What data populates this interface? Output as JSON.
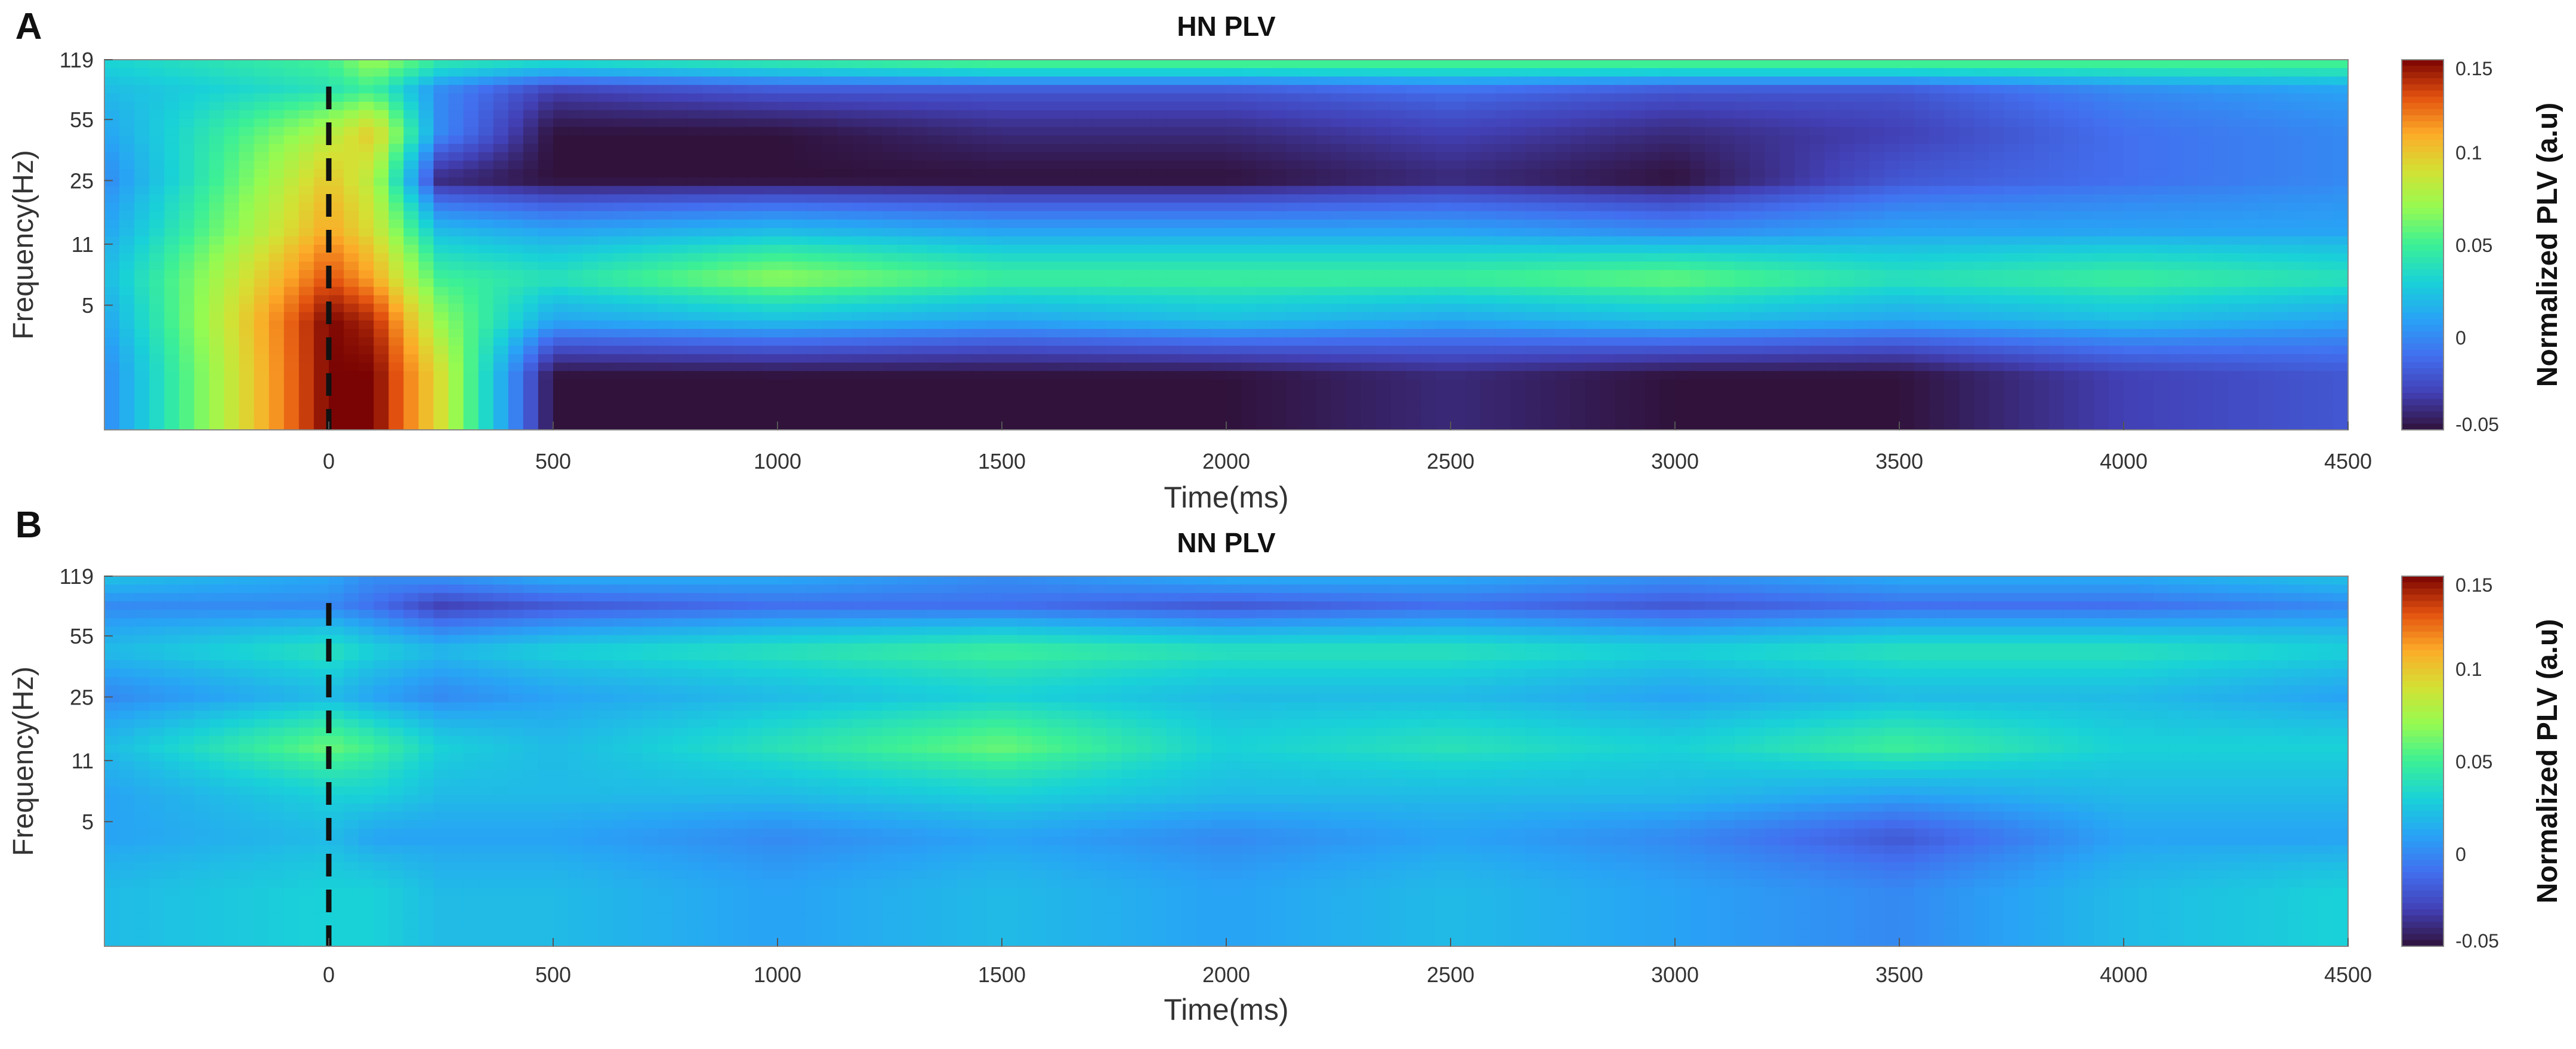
{
  "chart_data": [
    {
      "type": "heatmap",
      "panel_letter": "A",
      "title": "HN PLV",
      "xlabel": "Time(ms)",
      "ylabel": "Frequency(Hz)",
      "xlim": [
        -500,
        4500
      ],
      "ylim": [
        1,
        119
      ],
      "x_ticks": [
        0,
        500,
        1000,
        1500,
        2000,
        2500,
        3000,
        3500,
        4000,
        4500
      ],
      "y_ticks": [
        5,
        11,
        25,
        55,
        119
      ],
      "event_marker_ms": 0,
      "colorbar": {
        "label": "Normalized PLV (a.u)",
        "min": -0.05,
        "max": 0.15,
        "ticks": [
          "-0.05",
          "0",
          "0.05",
          "0.1",
          "0.15"
        ]
      },
      "grid": false,
      "x": [
        -500,
        0,
        100,
        250,
        500,
        1000,
        1500,
        2000,
        2500,
        3000,
        3500,
        4000,
        4500
      ],
      "y": [
        2,
        4,
        7,
        13,
        25,
        45,
        80,
        110
      ],
      "z": [
        [
          0.0,
          0.15,
          0.15,
          0.09,
          -0.05,
          -0.05,
          -0.05,
          -0.05,
          -0.04,
          -0.05,
          -0.05,
          -0.03,
          -0.02
        ],
        [
          0.01,
          0.15,
          0.14,
          0.07,
          0.01,
          0.02,
          0.01,
          0.02,
          0.01,
          0.02,
          0.01,
          0.02,
          0.01
        ],
        [
          0.02,
          0.13,
          0.11,
          0.05,
          0.04,
          0.07,
          0.05,
          0.05,
          0.05,
          0.06,
          0.04,
          0.05,
          0.04
        ],
        [
          0.01,
          0.11,
          0.09,
          0.02,
          0.01,
          0.02,
          0.01,
          0.01,
          0.01,
          0.0,
          0.01,
          0.01,
          0.01
        ],
        [
          0.0,
          0.1,
          0.08,
          -0.04,
          -0.05,
          -0.05,
          -0.05,
          -0.05,
          -0.04,
          -0.05,
          -0.02,
          -0.01,
          0.0
        ],
        [
          0.01,
          0.08,
          0.1,
          0.0,
          -0.05,
          -0.05,
          -0.04,
          -0.04,
          -0.03,
          -0.04,
          -0.03,
          -0.01,
          0.0
        ],
        [
          0.02,
          0.04,
          0.05,
          0.0,
          -0.03,
          -0.02,
          -0.02,
          -0.02,
          -0.01,
          -0.02,
          -0.02,
          0.0,
          0.01
        ],
        [
          0.03,
          0.05,
          0.07,
          0.04,
          0.03,
          0.04,
          0.05,
          0.05,
          0.05,
          0.05,
          0.05,
          0.05,
          0.05
        ]
      ]
    },
    {
      "type": "heatmap",
      "panel_letter": "B",
      "title": "NN PLV",
      "xlabel": "Time(ms)",
      "ylabel": "Frequency(Hz)",
      "xlim": [
        -500,
        4500
      ],
      "ylim": [
        1,
        119
      ],
      "x_ticks": [
        0,
        500,
        1000,
        1500,
        2000,
        2500,
        3000,
        3500,
        4000,
        4500
      ],
      "y_ticks": [
        5,
        11,
        25,
        55,
        119
      ],
      "event_marker_ms": 0,
      "colorbar": {
        "label": "Normalized PLV (a.u)",
        "min": -0.05,
        "max": 0.15,
        "ticks": [
          "-0.05",
          "0",
          "0.05",
          "0.1",
          "0.15"
        ]
      },
      "grid": false,
      "x": [
        -500,
        0,
        100,
        250,
        500,
        1000,
        1500,
        2000,
        2500,
        3000,
        3500,
        4000,
        4500
      ],
      "y": [
        2,
        4,
        7,
        13,
        25,
        45,
        80,
        110
      ],
      "z": [
        [
          0.02,
          0.03,
          0.03,
          0.02,
          0.02,
          0.01,
          0.02,
          0.01,
          0.02,
          0.01,
          0.0,
          0.02,
          0.03
        ],
        [
          0.01,
          0.02,
          0.01,
          0.01,
          0.01,
          0.0,
          0.01,
          0.0,
          0.01,
          0.0,
          -0.02,
          0.01,
          0.01
        ],
        [
          0.01,
          0.03,
          0.03,
          0.02,
          0.02,
          0.02,
          0.03,
          0.02,
          0.02,
          0.02,
          0.01,
          0.02,
          0.02
        ],
        [
          0.02,
          0.06,
          0.05,
          0.03,
          0.02,
          0.04,
          0.06,
          0.03,
          0.04,
          0.03,
          0.05,
          0.03,
          0.03
        ],
        [
          0.0,
          0.02,
          0.01,
          0.0,
          0.01,
          0.02,
          0.03,
          0.02,
          0.02,
          0.01,
          0.02,
          0.02,
          0.01
        ],
        [
          0.02,
          0.04,
          0.03,
          0.02,
          0.03,
          0.04,
          0.05,
          0.04,
          0.04,
          0.03,
          0.04,
          0.04,
          0.03
        ],
        [
          0.0,
          0.0,
          -0.01,
          -0.03,
          -0.02,
          -0.01,
          -0.01,
          -0.02,
          -0.01,
          -0.02,
          -0.01,
          -0.01,
          0.0
        ],
        [
          0.02,
          0.01,
          0.0,
          0.0,
          0.01,
          0.01,
          0.0,
          0.01,
          0.01,
          0.0,
          0.01,
          0.01,
          0.02
        ]
      ]
    }
  ]
}
